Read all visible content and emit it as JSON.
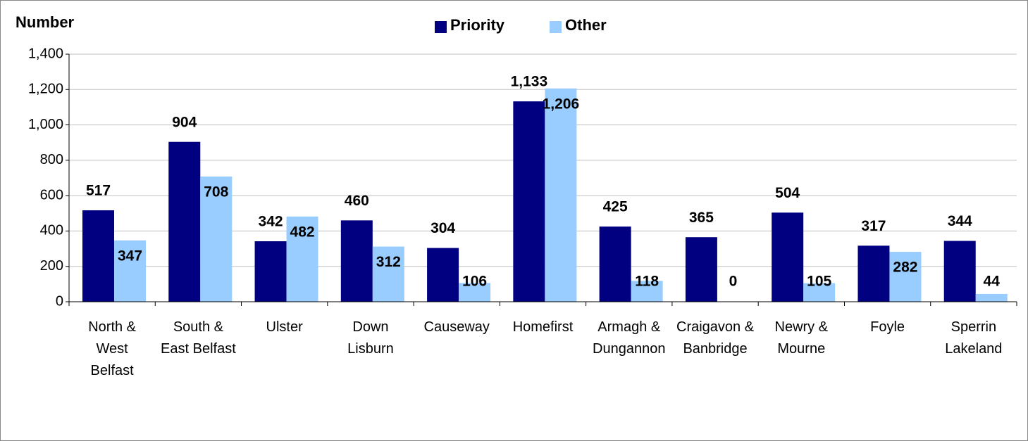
{
  "chart_data": {
    "type": "bar",
    "y_label": "Number",
    "categories": [
      "North &\nWest\nBelfast",
      "South &\nEast Belfast",
      "Ulster",
      "Down\nLisburn",
      "Causeway",
      "Homefirst",
      "Armagh &\nDungannon",
      "Craigavon &\nBanbridge",
      "Newry &\nMourne",
      "Foyle",
      "Sperrin\nLakeland"
    ],
    "series": [
      {
        "name": "Priority",
        "color": "#000080",
        "values": [
          517,
          904,
          342,
          460,
          304,
          1133,
          425,
          365,
          504,
          317,
          344
        ],
        "value_labels": [
          "517",
          "904",
          "342",
          "460",
          "304",
          "1,133",
          "425",
          "365",
          "504",
          "317",
          "344"
        ]
      },
      {
        "name": "Other",
        "color": "#99ccff",
        "values": [
          347,
          708,
          482,
          312,
          106,
          1206,
          118,
          0,
          105,
          282,
          44
        ],
        "value_labels": [
          "347",
          "708",
          "482",
          "312",
          "106",
          "1,206",
          "118",
          "0",
          "105",
          "282",
          "44"
        ]
      }
    ],
    "ylim": [
      0,
      1400
    ],
    "yticks": [
      0,
      200,
      400,
      600,
      800,
      {
        "value": 1000,
        "label": "1,000"
      },
      {
        "value": 1200,
        "label": "1,200"
      },
      {
        "value": 1400,
        "label": "1,400"
      }
    ],
    "grid": true,
    "legend": "top"
  }
}
